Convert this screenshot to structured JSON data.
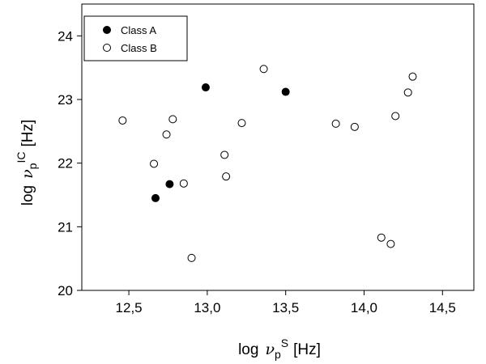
{
  "chart_data": {
    "type": "scatter",
    "xlabel": {
      "prefix": "log",
      "symbol": "ν",
      "sub": "p",
      "sup": "S",
      "unit": "[Hz]"
    },
    "ylabel": {
      "prefix": "log",
      "symbol": "ν",
      "sub": "p",
      "sup": "IC",
      "unit": "[Hz]"
    },
    "xlim": [
      12.2,
      14.7
    ],
    "ylim": [
      20.0,
      24.5
    ],
    "x_ticks": [
      12.5,
      13.0,
      13.5,
      14.0,
      14.5
    ],
    "x_tick_labels": [
      "12,5",
      "13,0",
      "13,5",
      "14,0",
      "14,5"
    ],
    "y_ticks": [
      20,
      21,
      22,
      23,
      24
    ],
    "y_tick_labels": [
      "20",
      "21",
      "22",
      "23",
      "24"
    ],
    "grid": false,
    "legend_position": "top-left",
    "series": [
      {
        "name": "Class A",
        "marker": "filled-circle",
        "color": "#000000",
        "points": [
          {
            "x": 12.99,
            "y": 23.19
          },
          {
            "x": 13.5,
            "y": 23.12
          },
          {
            "x": 12.76,
            "y": 21.67
          },
          {
            "x": 12.67,
            "y": 21.45
          }
        ]
      },
      {
        "name": "Class B",
        "marker": "open-circle",
        "color": "#000000",
        "points": [
          {
            "x": 12.46,
            "y": 22.67
          },
          {
            "x": 12.78,
            "y": 22.69
          },
          {
            "x": 12.74,
            "y": 22.45
          },
          {
            "x": 12.66,
            "y": 21.99
          },
          {
            "x": 12.85,
            "y": 21.68
          },
          {
            "x": 12.9,
            "y": 20.51
          },
          {
            "x": 13.11,
            "y": 22.13
          },
          {
            "x": 13.12,
            "y": 21.79
          },
          {
            "x": 13.22,
            "y": 22.63
          },
          {
            "x": 13.36,
            "y": 23.48
          },
          {
            "x": 13.82,
            "y": 22.62
          },
          {
            "x": 13.94,
            "y": 22.57
          },
          {
            "x": 14.2,
            "y": 22.74
          },
          {
            "x": 14.28,
            "y": 23.11
          },
          {
            "x": 14.31,
            "y": 23.36
          },
          {
            "x": 14.11,
            "y": 20.83
          },
          {
            "x": 14.17,
            "y": 20.73
          }
        ]
      }
    ]
  }
}
